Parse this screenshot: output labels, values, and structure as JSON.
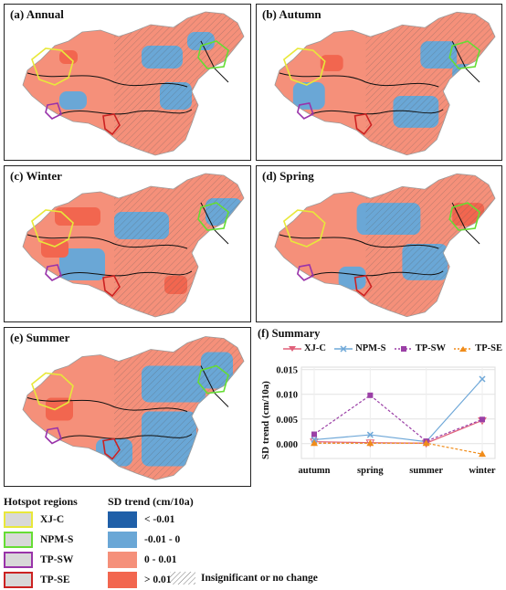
{
  "panels": [
    {
      "id": "a",
      "title": "(a) Annual"
    },
    {
      "id": "b",
      "title": "(b) Autumn"
    },
    {
      "id": "c",
      "title": "(c) Winter"
    },
    {
      "id": "d",
      "title": "(d) Spring"
    },
    {
      "id": "e",
      "title": "(e) Summer"
    }
  ],
  "legend": {
    "hotspot_title": "Hotspot regions",
    "hotspots": [
      {
        "label": "XJ-C",
        "color": "#e8e83a"
      },
      {
        "label": "NPM-S",
        "color": "#66dd33"
      },
      {
        "label": "TP-SW",
        "color": "#9933aa"
      },
      {
        "label": "TP-SE",
        "color": "#cc2222"
      }
    ],
    "trend_title": "SD trend (cm/10a)",
    "trend_classes": [
      {
        "label": "< -0.01",
        "color": "#1f5fa8"
      },
      {
        "label": "-0.01 - 0",
        "color": "#6aa7d6"
      },
      {
        "label": "0 - 0.01",
        "color": "#f5907a"
      },
      {
        "label": "> 0.01",
        "color": "#f2664f"
      }
    ],
    "insignificant_label": "Insignificant or no change"
  },
  "chart_data": {
    "type": "line",
    "title": "(f) Summary",
    "xlabel": "",
    "ylabel": "SD trend (cm/10a)",
    "categories": [
      "autumn",
      "spring",
      "summer",
      "winter"
    ],
    "ylim": [
      -0.003,
      0.0155
    ],
    "yticks": [
      "0.000",
      "0.005",
      "0.010",
      "0.015"
    ],
    "ytick_values": [
      0,
      0.005,
      0.01,
      0.015
    ],
    "grid": true,
    "legend_position": "top",
    "series": [
      {
        "name": "XJ-C",
        "values": [
          0.0004,
          0.0002,
          0.0001,
          0.0047
        ],
        "color": "#e0607a",
        "marker": "triangle-down"
      },
      {
        "name": "NPM-S",
        "values": [
          0.0008,
          0.0018,
          0.0004,
          0.0131
        ],
        "color": "#6fa8d8",
        "marker": "x"
      },
      {
        "name": "TP-SW",
        "values": [
          0.0019,
          0.0098,
          0.0005,
          0.0049
        ],
        "color": "#9b3fa6",
        "marker": "square"
      },
      {
        "name": "TP-SE",
        "values": [
          0.0001,
          0.0001,
          0.0001,
          -0.0021
        ],
        "color": "#f08c1a",
        "marker": "triangle-up"
      }
    ]
  }
}
